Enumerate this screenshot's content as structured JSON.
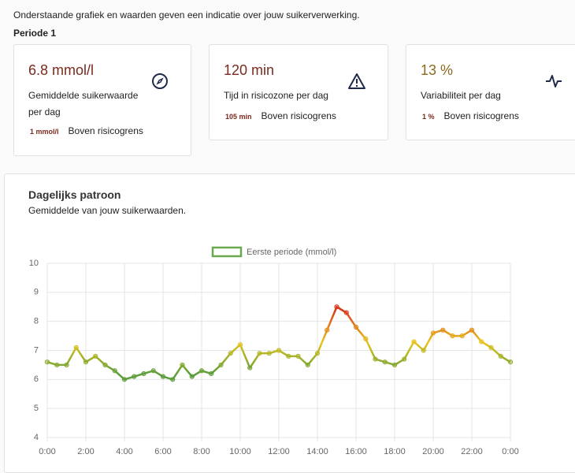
{
  "header": {
    "intro": "Onderstaande grafiek en waarden geven een indicatie over jouw suikerverwerking.",
    "period": "Periode 1"
  },
  "cards": [
    {
      "value": "6.8 mmol/l",
      "label": "Gemiddelde suikerwaarde per dag",
      "sub_value": "1 mmol/l",
      "sub_label": "Boven risicogrens"
    },
    {
      "value": "120 min",
      "label": "Tijd in risicozone per dag",
      "sub_value": "105 min",
      "sub_label": "Boven risicogrens"
    },
    {
      "value": "13 %",
      "label": "Variabiliteit per dag",
      "sub_value": "1 %",
      "sub_label": "Boven risicogrens"
    }
  ],
  "chart_data": {
    "type": "line",
    "title": "Dagelijks patroon",
    "subtitle": "Gemiddelde van jouw suikerwaarden.",
    "x": [
      0,
      0.5,
      1,
      1.5,
      2,
      2.5,
      3,
      3.5,
      4,
      4.5,
      5,
      5.5,
      6,
      6.5,
      7,
      7.5,
      8,
      8.5,
      9,
      9.5,
      10,
      10.5,
      11,
      11.5,
      12,
      12.5,
      13,
      13.5,
      14,
      14.5,
      15,
      15.5,
      16,
      16.5,
      17,
      17.5,
      18,
      18.5,
      19,
      19.5,
      20,
      20.5,
      21,
      21.5,
      22,
      22.5,
      23,
      23.5,
      24
    ],
    "series": [
      {
        "name": "Eerste periode (mmol/l)",
        "color": "#6aa84f",
        "values": [
          6.6,
          6.5,
          6.5,
          7.1,
          6.6,
          6.8,
          6.5,
          6.3,
          6.0,
          6.1,
          6.2,
          6.3,
          6.1,
          6.0,
          6.5,
          6.1,
          6.3,
          6.2,
          6.5,
          6.9,
          7.2,
          6.4,
          6.9,
          6.9,
          7.0,
          6.8,
          6.8,
          6.5,
          6.9,
          7.7,
          8.5,
          8.3,
          7.8,
          7.4,
          6.7,
          6.6,
          6.5,
          6.7,
          7.3,
          7.0,
          7.6,
          7.7,
          7.5,
          7.5,
          7.7,
          7.3,
          7.1,
          6.8,
          6.6
        ]
      }
    ],
    "line_colors": [
      "#d93a1e",
      "#e8c41c",
      "#5c9e3a"
    ],
    "xlim": [
      0,
      24
    ],
    "xticks": [
      {
        "value": 0,
        "label": "0:00"
      },
      {
        "value": 2,
        "label": "2:00"
      },
      {
        "value": 4,
        "label": "4:00"
      },
      {
        "value": 6,
        "label": "6:00"
      },
      {
        "value": 8,
        "label": "8:00"
      },
      {
        "value": 10,
        "label": "10:00"
      },
      {
        "value": 12,
        "label": "12:00"
      },
      {
        "value": 14,
        "label": "14:00"
      },
      {
        "value": 16,
        "label": "16:00"
      },
      {
        "value": 18,
        "label": "18:00"
      },
      {
        "value": 20,
        "label": "20:00"
      },
      {
        "value": 22,
        "label": "22:00"
      },
      {
        "value": 24,
        "label": "0:00"
      }
    ],
    "ylim": [
      4,
      10
    ],
    "yticks": [
      4,
      5,
      6,
      7,
      8,
      9,
      10
    ],
    "grid": true,
    "legend": "top"
  }
}
